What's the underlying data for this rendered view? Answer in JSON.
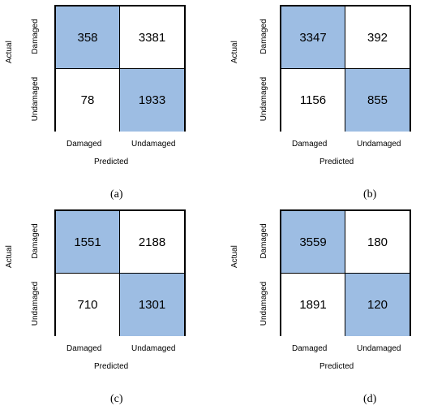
{
  "chart_data": [
    {
      "type": "heatmap",
      "panel_label": "(a)",
      "ylabel": "Actual",
      "xlabel": "Predicted",
      "row_labels": [
        "Damaged",
        "Undamaged"
      ],
      "col_labels": [
        "Damaged",
        "Undamaged"
      ],
      "values": [
        [
          358,
          3381
        ],
        [
          78,
          1933
        ]
      ]
    },
    {
      "type": "heatmap",
      "panel_label": "(b)",
      "ylabel": "Actual",
      "xlabel": "Predicted",
      "row_labels": [
        "Damaged",
        "Undamaged"
      ],
      "col_labels": [
        "Damaged",
        "Undamaged"
      ],
      "values": [
        [
          3347,
          392
        ],
        [
          1156,
          855
        ]
      ]
    },
    {
      "type": "heatmap",
      "panel_label": "(c)",
      "ylabel": "Actual",
      "xlabel": "Predicted",
      "row_labels": [
        "Damaged",
        "Undamaged"
      ],
      "col_labels": [
        "Damaged",
        "Undamaged"
      ],
      "values": [
        [
          1551,
          2188
        ],
        [
          710,
          1301
        ]
      ]
    },
    {
      "type": "heatmap",
      "panel_label": "(d)",
      "ylabel": "Actual",
      "xlabel": "Predicted",
      "row_labels": [
        "Damaged",
        "Undamaged"
      ],
      "col_labels": [
        "Damaged",
        "Undamaged"
      ],
      "values": [
        [
          3559,
          180
        ],
        [
          1891,
          120
        ]
      ]
    }
  ],
  "colors": {
    "diagonal": "#9dbde3",
    "off_diagonal": "#ffffff",
    "border": "#000000"
  }
}
